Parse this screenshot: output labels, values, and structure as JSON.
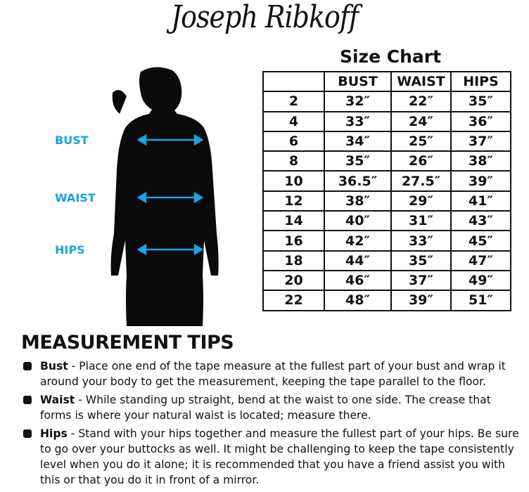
{
  "brand": {
    "logo_text": "Joseph Ribkoff"
  },
  "chart": {
    "title": "Size Chart",
    "headers": [
      "",
      "BUST",
      "WAIST",
      "HIPS"
    ],
    "rows": [
      [
        "2",
        "32″",
        "22″",
        "35″"
      ],
      [
        "4",
        "33″",
        "24″",
        "36″"
      ],
      [
        "6",
        "34″",
        "25″",
        "37″"
      ],
      [
        "8",
        "35″",
        "26″",
        "38″"
      ],
      [
        "10",
        "36.5″",
        "27.5″",
        "39″"
      ],
      [
        "12",
        "38″",
        "29″",
        "41″"
      ],
      [
        "14",
        "40″",
        "31″",
        "43″"
      ],
      [
        "16",
        "42″",
        "33″",
        "45″"
      ],
      [
        "18",
        "44″",
        "35″",
        "47″"
      ],
      [
        "20",
        "46″",
        "37″",
        "49″"
      ],
      [
        "22",
        "48″",
        "39″",
        "51″"
      ]
    ]
  },
  "figure": {
    "labels": {
      "bust": "BUST",
      "waist": "WAIST",
      "hips": "HIPS"
    },
    "accent_color": "#1aa3e0"
  },
  "tips": {
    "title": "MEASUREMENT TIPS",
    "items": [
      {
        "term": "Bust",
        "text": " - Place one end of the tape measure at the fullest part of your bust and wrap it around your body to get the measurement, keeping the tape parallel to the floor."
      },
      {
        "term": "Waist",
        "text": " - While standing up straight, bend at the waist to one side. The crease that forms is where your natural waist is located; measure there."
      },
      {
        "term": "Hips",
        "text": " - Stand with your hips together and measure the fullest part of your hips. Be sure to go over your buttocks as well. It might be challenging to keep the tape consistently level when you do it alone; it is recommended that you have a friend assist you with this or that you do it in front of a mirror."
      }
    ]
  }
}
